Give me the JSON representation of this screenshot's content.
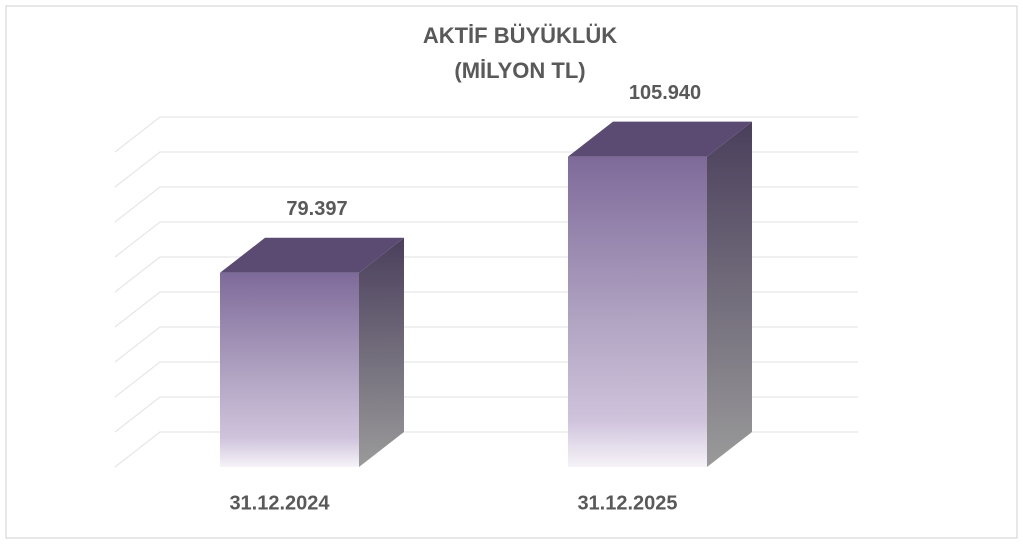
{
  "chart_data": {
    "type": "bar3d",
    "title": [
      "AKTİF BÜYÜKLÜK",
      "(MİLYON TL)"
    ],
    "categories": [
      "31.12.2024",
      "31.12.2025"
    ],
    "values": [
      79397,
      105940
    ],
    "value_labels": [
      "79.397",
      "105.940"
    ],
    "color": "#7e6a9a",
    "ylim": [
      35000,
      107000
    ],
    "yticks": [
      35000,
      43000,
      51000,
      59000,
      67000,
      75000,
      83000,
      91000,
      99000,
      107000
    ],
    "grid": true
  }
}
